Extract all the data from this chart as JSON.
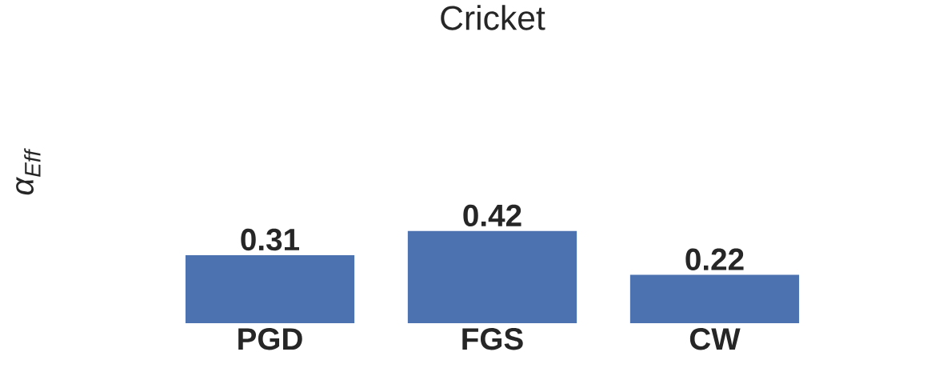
{
  "chart_data": {
    "type": "bar",
    "title": "Cricket",
    "ylabel": "α$_{Eff}$",
    "categories": [
      "PGD",
      "FGS",
      "CW"
    ],
    "values": [
      0.31,
      0.42,
      0.22
    ],
    "color": "#4c72b0",
    "tick_labels": "x",
    "data_labels": true
  }
}
